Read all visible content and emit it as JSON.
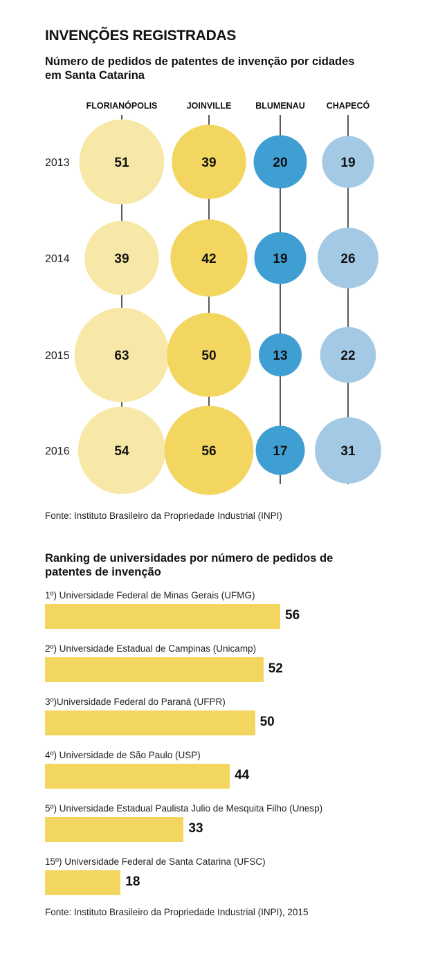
{
  "title": "INVENÇÕES REGISTRADAS",
  "subtitle": "Número de pedidos de patentes de invenção por cidades em Santa Catarina",
  "source1": "Fonte: Instituto Brasileiro da Propriedade Industrial (INPI)",
  "ranking_title": "Ranking de universidades por número de pedidos de patentes de invenção",
  "source2": "Fonte: Instituto Brasileiro da Propriedade Industrial (INPI), 2015",
  "chart_data": [
    {
      "type": "scatter",
      "title": "Número de pedidos de patentes de invenção por cidades em Santa Catarina",
      "x": [
        "FLORIANÓPOLIS",
        "JOINVILLE",
        "BLUMENAU",
        "CHAPECÓ"
      ],
      "y": [
        "2013",
        "2014",
        "2015",
        "2016"
      ],
      "series": [
        {
          "name": "FLORIANÓPOLIS",
          "color": "#f8e8a8",
          "values": [
            51,
            39,
            63,
            54
          ]
        },
        {
          "name": "JOINVILLE",
          "color": "#f3d65f",
          "values": [
            39,
            42,
            50,
            56
          ]
        },
        {
          "name": "BLUMENAU",
          "color": "#3f9ed2",
          "values": [
            20,
            19,
            13,
            17
          ]
        },
        {
          "name": "CHAPECÓ",
          "color": "#a3c9e5",
          "values": [
            19,
            26,
            22,
            31
          ]
        }
      ]
    },
    {
      "type": "bar",
      "title": "Ranking de universidades por número de pedidos de patentes de invenção",
      "categories": [
        "1º) Universidade Federal de Minas Gerais (UFMG)",
        "2º) Universidade Estadual de Campinas (Unicamp)",
        "3º)Universidade Federal do Paraná (UFPR)",
        "4º) Universidade de São Paulo (USP)",
        "5º) Universidade Estadual Paulista Julio de Mesquita Filho (Unesp)",
        "15º) Universidade Federal de Santa Catarina (UFSC)"
      ],
      "values": [
        56,
        52,
        50,
        44,
        33,
        18
      ],
      "color": "#f3d65f"
    }
  ]
}
